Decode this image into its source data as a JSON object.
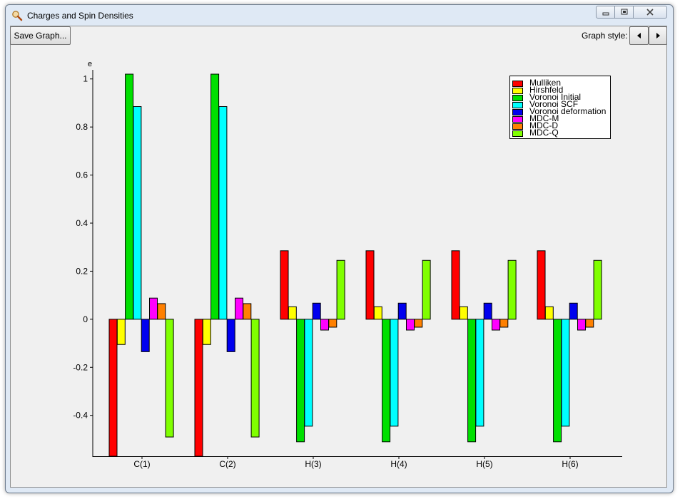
{
  "window": {
    "title": "Charges and Spin Densities"
  },
  "toolbar": {
    "save_label": "Save Graph...",
    "style_label": "Graph style:"
  },
  "colors": {
    "Mulliken": "#ff0000",
    "Hirshfeld": "#ffff00",
    "Voronoi Initial": "#00e000",
    "Voronoi SCF": "#00ffff",
    "Voronoi deformation": "#0000ee",
    "MDC-M": "#ff00ff",
    "MDC-D": "#ff8000",
    "MDC-Q": "#80ff00"
  },
  "chart_data": {
    "type": "bar",
    "ylabel": "e",
    "ylim": [
      -0.57,
      1.02
    ],
    "yticks": [
      -0.4,
      -0.2,
      0,
      0.2,
      0.4,
      0.6,
      0.8,
      1
    ],
    "ytick_labels": [
      "-0.4",
      "-0.2",
      "0",
      "0.2",
      "0.4",
      "0.6",
      "0.8",
      "1"
    ],
    "legend_position": "top-right",
    "categories": [
      "C(1)",
      "C(2)",
      "H(3)",
      "H(4)",
      "H(5)",
      "H(6)"
    ],
    "series": [
      {
        "name": "Mulliken",
        "color": "#ff0000",
        "values": [
          -0.57,
          -0.57,
          0.285,
          0.285,
          0.285,
          0.285
        ]
      },
      {
        "name": "Hirshfeld",
        "color": "#ffff00",
        "values": [
          -0.105,
          -0.105,
          0.052,
          0.052,
          0.052,
          0.052
        ]
      },
      {
        "name": "Voronoi Initial",
        "color": "#00e000",
        "values": [
          1.02,
          1.02,
          -0.51,
          -0.51,
          -0.51,
          -0.51
        ]
      },
      {
        "name": "Voronoi SCF",
        "color": "#00ffff",
        "values": [
          0.885,
          0.885,
          -0.445,
          -0.445,
          -0.445,
          -0.445
        ]
      },
      {
        "name": "Voronoi deformation",
        "color": "#0000ee",
        "values": [
          -0.135,
          -0.135,
          0.067,
          0.067,
          0.067,
          0.067
        ]
      },
      {
        "name": "MDC-M",
        "color": "#ff00ff",
        "values": [
          0.088,
          0.088,
          -0.045,
          -0.045,
          -0.045,
          -0.045
        ]
      },
      {
        "name": "MDC-D",
        "color": "#ff8000",
        "values": [
          0.065,
          0.065,
          -0.033,
          -0.033,
          -0.033,
          -0.033
        ]
      },
      {
        "name": "MDC-Q",
        "color": "#80ff00",
        "values": [
          -0.49,
          -0.49,
          0.245,
          0.245,
          0.245,
          0.245
        ]
      }
    ]
  }
}
